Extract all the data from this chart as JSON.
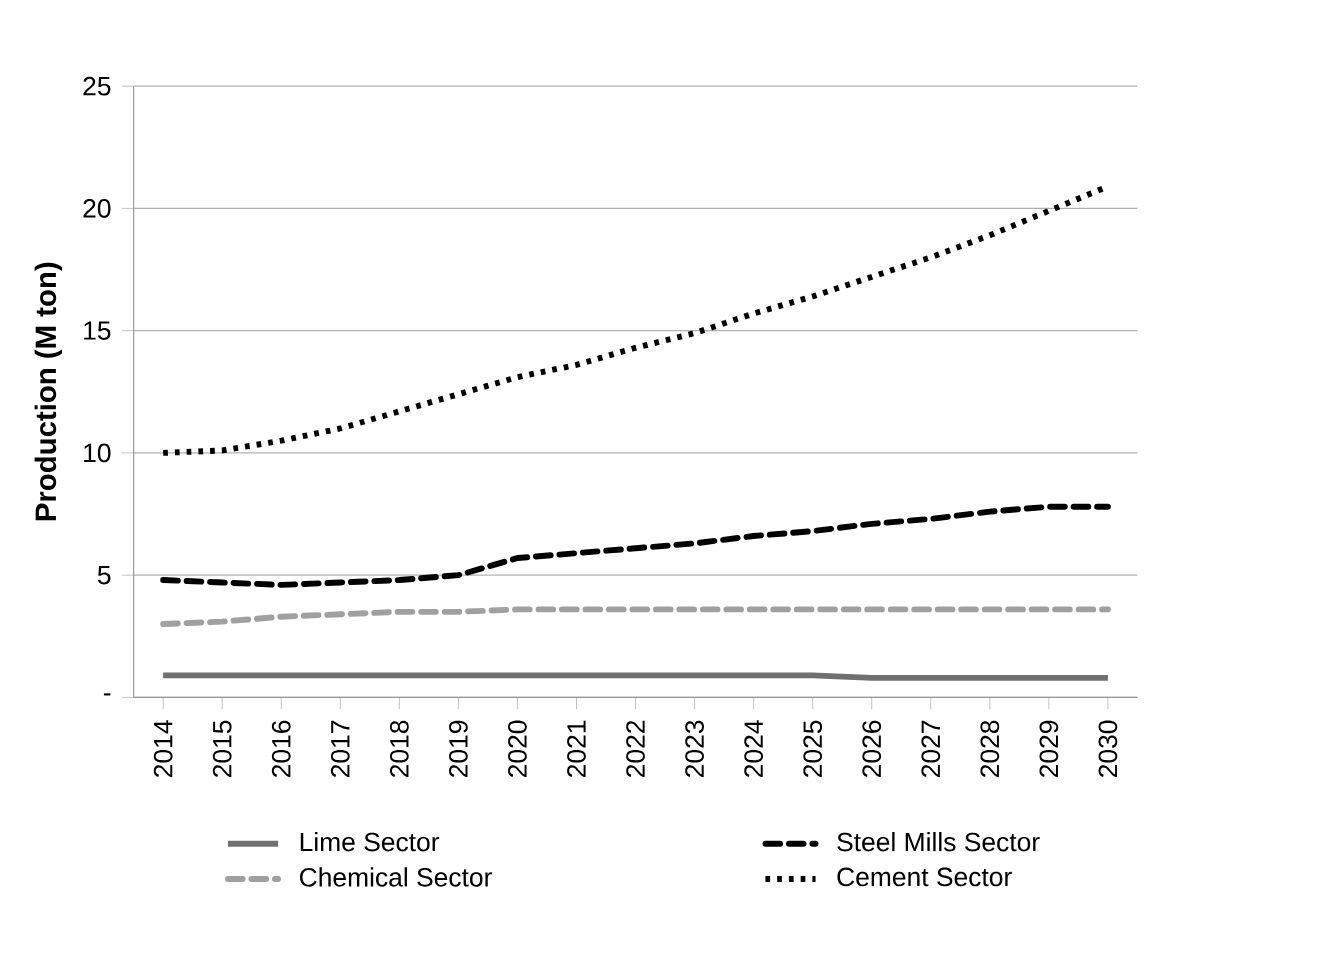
{
  "chart_data": {
    "type": "line",
    "ylabel": "Production (M ton)",
    "categories": [
      "2014",
      "2015",
      "2016",
      "2017",
      "2018",
      "2019",
      "2020",
      "2021",
      "2022",
      "2023",
      "2024",
      "2025",
      "2026",
      "2027",
      "2028",
      "2029",
      "2030"
    ],
    "ylim": [
      0,
      25
    ],
    "yticks": [
      {
        "value": 0,
        "label": "-"
      },
      5,
      10,
      15,
      20,
      25
    ],
    "grid": "y",
    "legend": "bottom",
    "series": [
      {
        "name": "Lime Sector",
        "color": "#707070",
        "line_style": "solid",
        "values": [
          0.9,
          0.9,
          0.9,
          0.9,
          0.9,
          0.9,
          0.9,
          0.9,
          0.9,
          0.9,
          0.9,
          0.9,
          0.8,
          0.8,
          0.8,
          0.8,
          0.8
        ]
      },
      {
        "name": "Steel Mills Sector",
        "color": "#000000",
        "line_style": "dashed",
        "values": [
          4.8,
          4.7,
          4.6,
          4.7,
          4.8,
          5.0,
          5.7,
          5.9,
          6.1,
          6.3,
          6.6,
          6.8,
          7.1,
          7.3,
          7.6,
          7.8,
          7.8
        ]
      },
      {
        "name": "Chemical Sector",
        "color": "#a0a0a0",
        "line_style": "dashed",
        "values": [
          3.0,
          3.1,
          3.3,
          3.4,
          3.5,
          3.5,
          3.6,
          3.6,
          3.6,
          3.6,
          3.6,
          3.6,
          3.6,
          3.6,
          3.6,
          3.6,
          3.6
        ]
      },
      {
        "name": "Cement Sector",
        "color": "#000000",
        "line_style": "dotted",
        "values": [
          10.0,
          10.1,
          10.5,
          11.0,
          11.7,
          12.4,
          13.1,
          13.6,
          14.3,
          14.9,
          15.7,
          16.4,
          17.2,
          18.0,
          18.9,
          19.9,
          20.9
        ]
      }
    ]
  }
}
